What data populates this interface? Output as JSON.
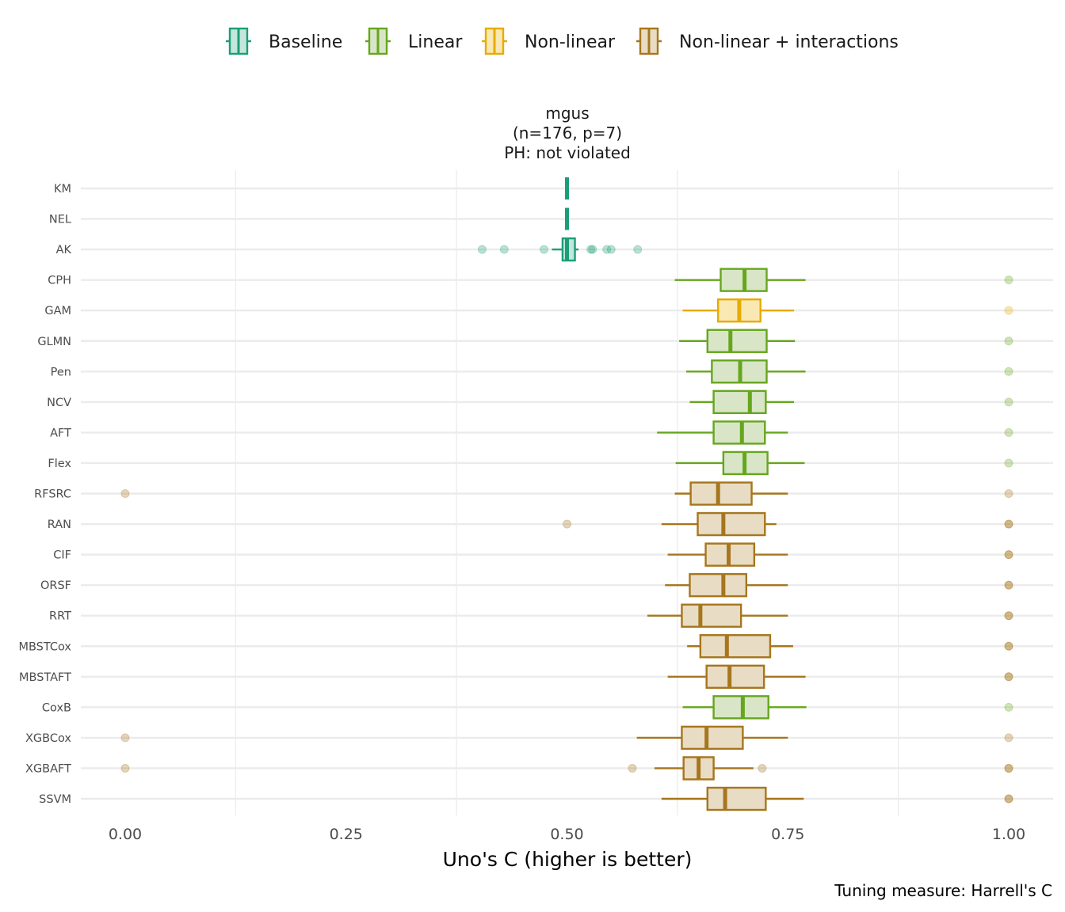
{
  "chart_data": {
    "type": "boxplot",
    "orientation": "horizontal",
    "title": [
      "mgus",
      "(n=176, p=7)",
      "PH: not violated"
    ],
    "xlabel": "Uno's C (higher is better)",
    "ylabel": "",
    "caption": "Tuning measure: Harrell's C",
    "xlim": [
      -0.05,
      1.05
    ],
    "x_ticks": [
      0,
      0.25,
      0.5,
      0.75,
      1.0
    ],
    "x_tick_labels": [
      "0.00",
      "0.25",
      "0.50",
      "0.75",
      "1.00"
    ],
    "grid": "horizontal major, vertical minor",
    "legend": {
      "position": "top",
      "entries": [
        {
          "name": "Baseline",
          "color": "#1B9E77",
          "fill": "#C5E6DB"
        },
        {
          "name": "Linear",
          "color": "#66A61E",
          "fill": "#D8E6C7"
        },
        {
          "name": "Non-linear",
          "color": "#E6AB02",
          "fill": "#FAE8B3"
        },
        {
          "name": "Non-linear + interactions",
          "color": "#A6761D",
          "fill": "#E9DCC4"
        }
      ]
    },
    "series": [
      {
        "name": "KM",
        "group": "Baseline",
        "whisker_low": 0.5,
        "q1": 0.5,
        "median": 0.5,
        "q3": 0.5,
        "whisker_high": 0.5,
        "outliers": []
      },
      {
        "name": "NEL",
        "group": "Baseline",
        "whisker_low": 0.5,
        "q1": 0.5,
        "median": 0.5,
        "q3": 0.5,
        "whisker_high": 0.5,
        "outliers": []
      },
      {
        "name": "AK",
        "group": "Baseline",
        "whisker_low": 0.483,
        "q1": 0.495,
        "median": 0.5,
        "q3": 0.509,
        "whisker_high": 0.513,
        "outliers": [
          0.404,
          0.429,
          0.474,
          0.527,
          0.529,
          0.545,
          0.55,
          0.58
        ]
      },
      {
        "name": "CPH",
        "group": "Linear",
        "whisker_low": 0.622,
        "q1": 0.674,
        "median": 0.701,
        "q3": 0.726,
        "whisker_high": 0.77,
        "outliers": [
          1.0
        ]
      },
      {
        "name": "GAM",
        "group": "Non-linear",
        "whisker_low": 0.631,
        "q1": 0.671,
        "median": 0.695,
        "q3": 0.719,
        "whisker_high": 0.757,
        "outliers": [
          1.0
        ]
      },
      {
        "name": "GLMN",
        "group": "Linear",
        "whisker_low": 0.627,
        "q1": 0.659,
        "median": 0.685,
        "q3": 0.726,
        "whisker_high": 0.758,
        "outliers": [
          1.0
        ]
      },
      {
        "name": "Pen",
        "group": "Linear",
        "whisker_low": 0.635,
        "q1": 0.664,
        "median": 0.696,
        "q3": 0.726,
        "whisker_high": 0.77,
        "outliers": [
          1.0
        ]
      },
      {
        "name": "NCV",
        "group": "Linear",
        "whisker_low": 0.639,
        "q1": 0.666,
        "median": 0.707,
        "q3": 0.725,
        "whisker_high": 0.757,
        "outliers": [
          1.0
        ]
      },
      {
        "name": "AFT",
        "group": "Linear",
        "whisker_low": 0.602,
        "q1": 0.666,
        "median": 0.698,
        "q3": 0.724,
        "whisker_high": 0.75,
        "outliers": [
          1.0
        ]
      },
      {
        "name": "Flex",
        "group": "Linear",
        "whisker_low": 0.623,
        "q1": 0.677,
        "median": 0.701,
        "q3": 0.727,
        "whisker_high": 0.769,
        "outliers": [
          1.0
        ]
      },
      {
        "name": "RFSRC",
        "group": "Non-linear + interactions",
        "whisker_low": 0.622,
        "q1": 0.64,
        "median": 0.671,
        "q3": 0.709,
        "whisker_high": 0.75,
        "outliers": [
          0.0,
          1.0
        ]
      },
      {
        "name": "RAN",
        "group": "Non-linear + interactions",
        "whisker_low": 0.607,
        "q1": 0.648,
        "median": 0.677,
        "q3": 0.724,
        "whisker_high": 0.737,
        "outliers": [
          0.5,
          1.0,
          1.0
        ]
      },
      {
        "name": "CIF",
        "group": "Non-linear + interactions",
        "whisker_low": 0.614,
        "q1": 0.657,
        "median": 0.683,
        "q3": 0.712,
        "whisker_high": 0.75,
        "outliers": [
          1.0,
          1.0
        ]
      },
      {
        "name": "ORSF",
        "group": "Non-linear + interactions",
        "whisker_low": 0.611,
        "q1": 0.639,
        "median": 0.677,
        "q3": 0.703,
        "whisker_high": 0.75,
        "outliers": [
          1.0,
          1.0
        ]
      },
      {
        "name": "RRT",
        "group": "Non-linear + interactions",
        "whisker_low": 0.591,
        "q1": 0.63,
        "median": 0.651,
        "q3": 0.697,
        "whisker_high": 0.75,
        "outliers": [
          1.0,
          1.0
        ]
      },
      {
        "name": "MBSTCox",
        "group": "Non-linear + interactions",
        "whisker_low": 0.636,
        "q1": 0.651,
        "median": 0.681,
        "q3": 0.73,
        "whisker_high": 0.756,
        "outliers": [
          1.0,
          1.0
        ]
      },
      {
        "name": "MBSTAFT",
        "group": "Non-linear + interactions",
        "whisker_low": 0.614,
        "q1": 0.658,
        "median": 0.684,
        "q3": 0.723,
        "whisker_high": 0.77,
        "outliers": [
          1.0,
          1.0
        ]
      },
      {
        "name": "CoxB",
        "group": "Linear",
        "whisker_low": 0.631,
        "q1": 0.666,
        "median": 0.699,
        "q3": 0.728,
        "whisker_high": 0.771,
        "outliers": [
          1.0
        ]
      },
      {
        "name": "XGBCox",
        "group": "Non-linear + interactions",
        "whisker_low": 0.579,
        "q1": 0.63,
        "median": 0.658,
        "q3": 0.699,
        "whisker_high": 0.75,
        "outliers": [
          0.0,
          1.0
        ]
      },
      {
        "name": "XGBAFT",
        "group": "Non-linear + interactions",
        "whisker_low": 0.599,
        "q1": 0.632,
        "median": 0.649,
        "q3": 0.666,
        "whisker_high": 0.711,
        "outliers": [
          0.0,
          0.574,
          0.721,
          1.0,
          1.0
        ]
      },
      {
        "name": "SSVM",
        "group": "Non-linear + interactions",
        "whisker_low": 0.607,
        "q1": 0.659,
        "median": 0.679,
        "q3": 0.725,
        "whisker_high": 0.768,
        "outliers": [
          1.0,
          1.0
        ]
      }
    ]
  }
}
